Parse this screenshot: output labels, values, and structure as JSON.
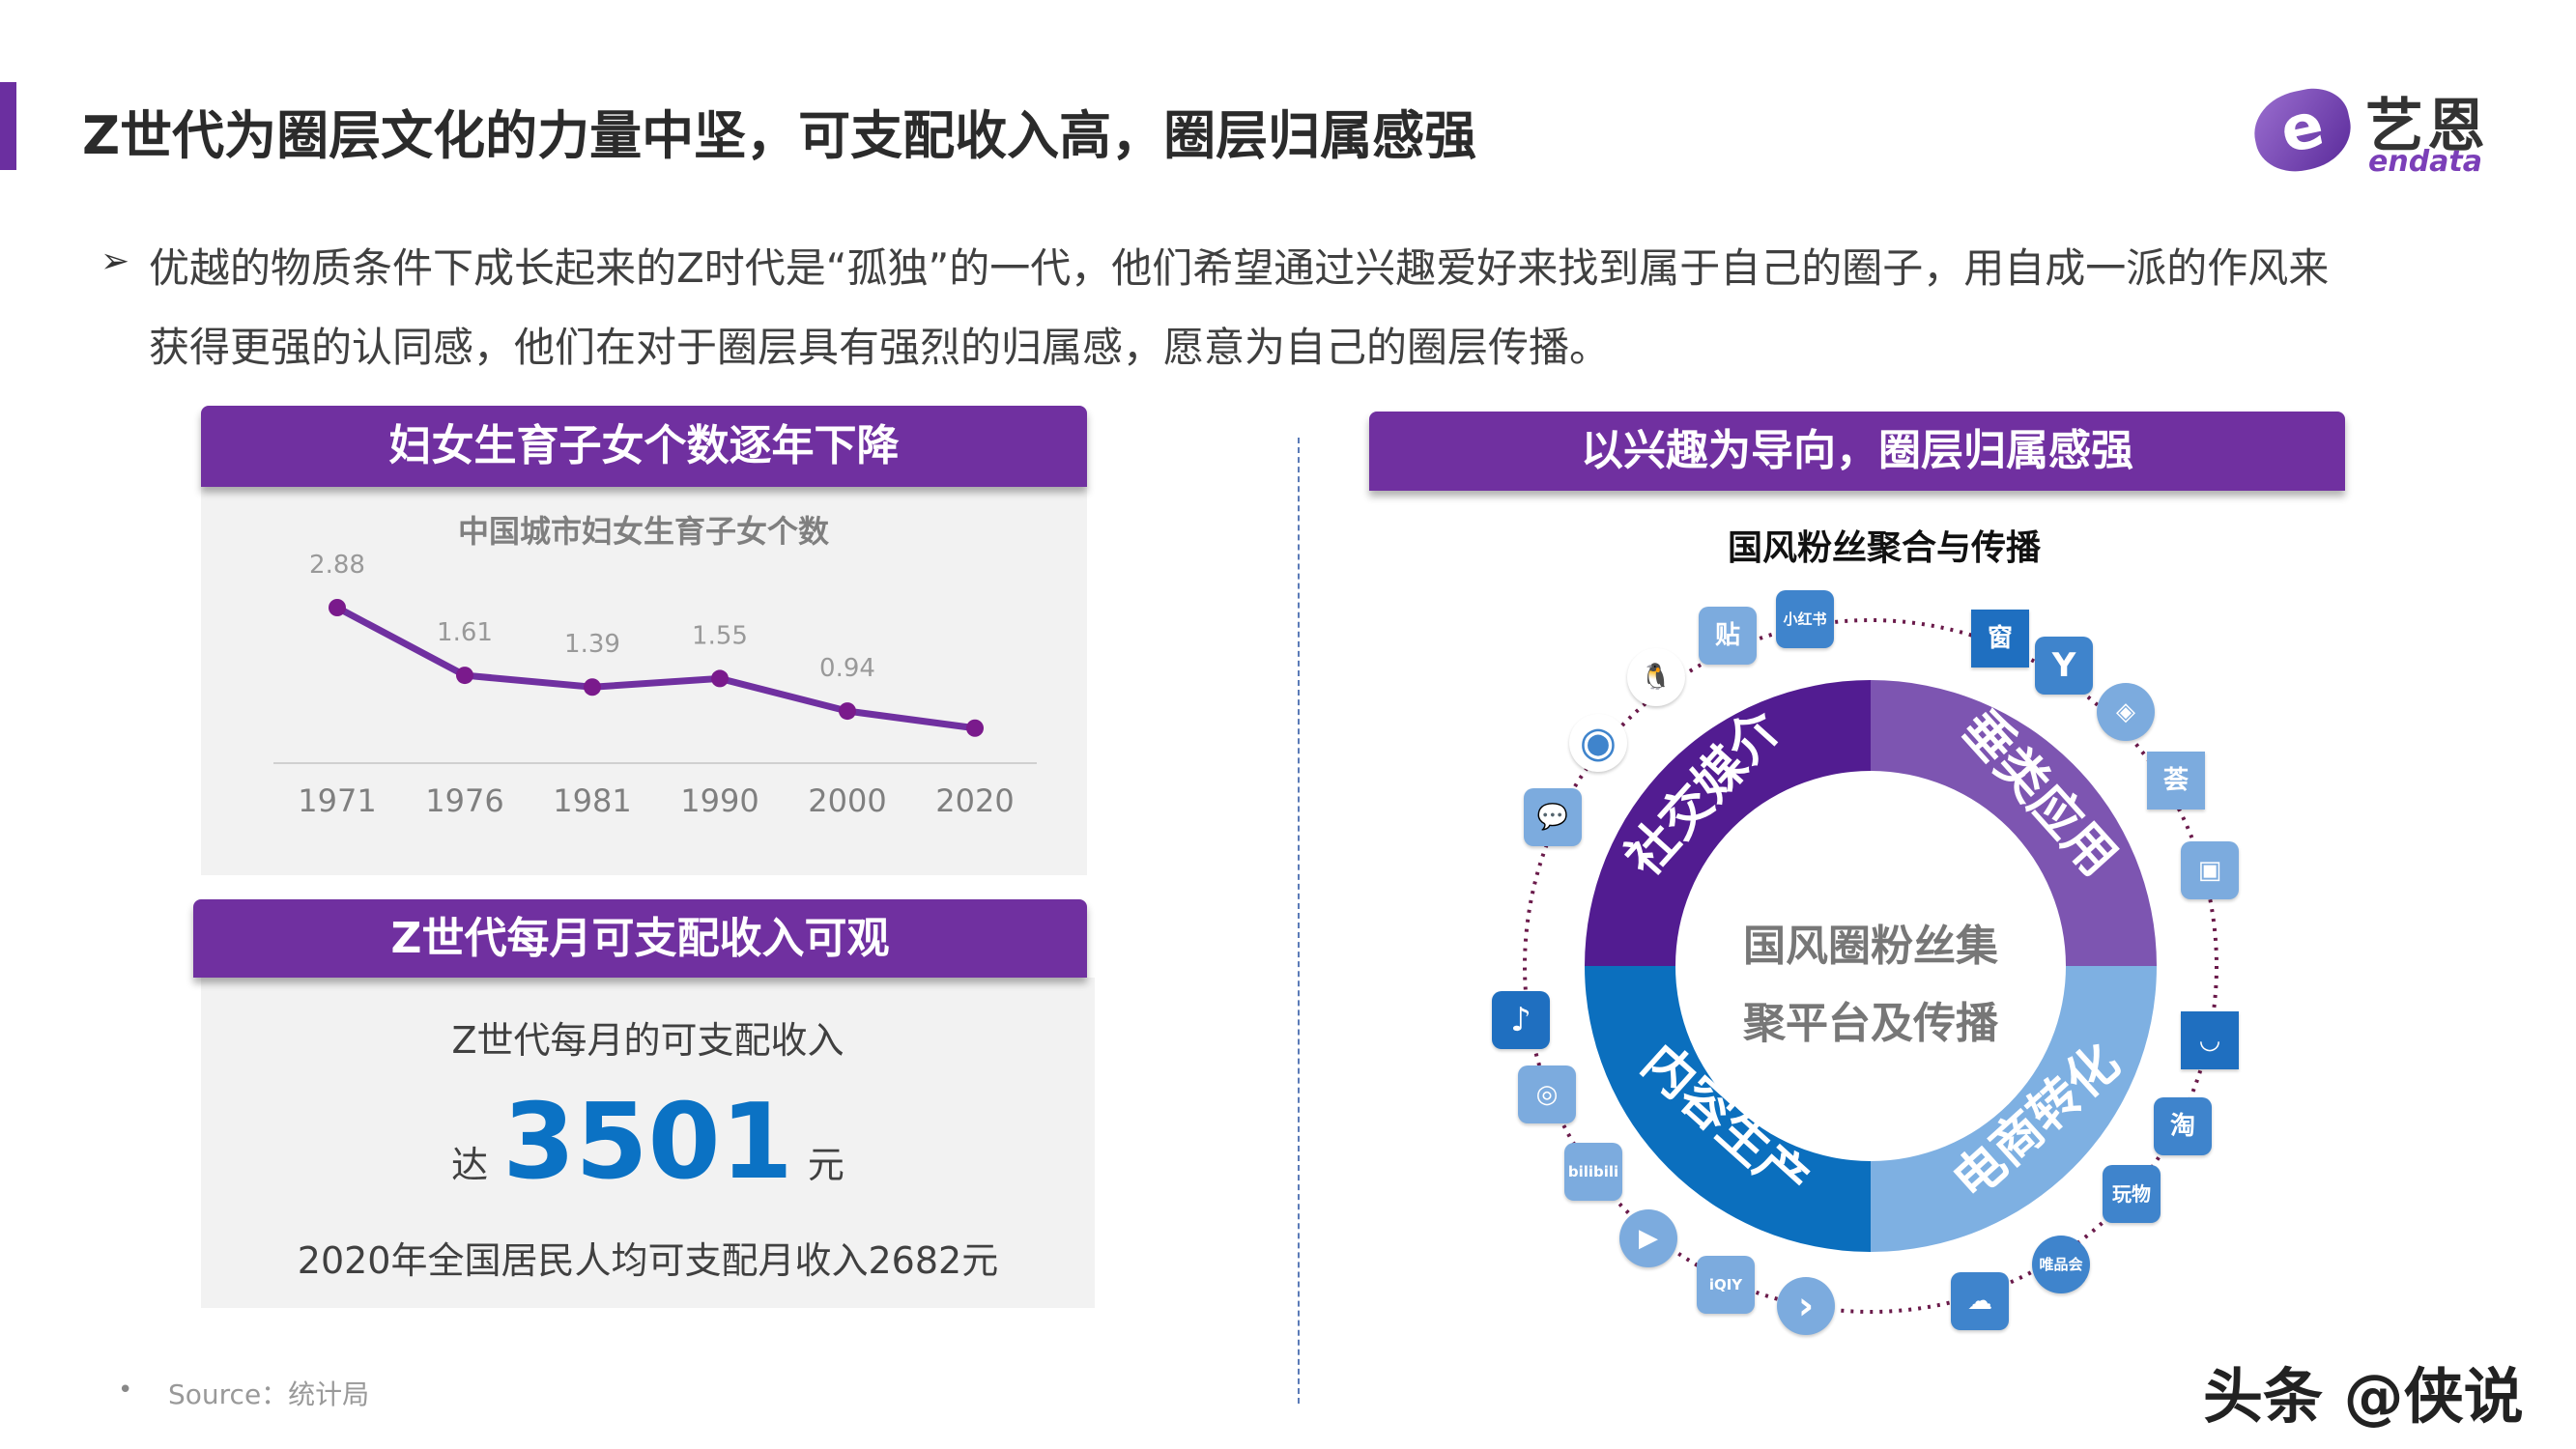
{
  "header": {
    "title": "Z世代为圈层文化的力量中坚，可支配收入高，圈层归属感强",
    "logo_cn": "艺恩",
    "logo_en": "endata",
    "logo_mark": "e"
  },
  "intro": {
    "bullet_icon": "➢",
    "line1": "优越的物质条件下成长起来的Z时代是“孤独”的一代，他们希望通过兴趣爱好来找到属于自己的圈子，用自成一派的作风来",
    "line2": "获得更强的认同感，他们在对于圈层具有强烈的归属感，愿意为自己的圈层传播。"
  },
  "left_top": {
    "header": "妇女生育子女个数逐年下降"
  },
  "chart_data": {
    "type": "line",
    "title": "中国城市妇女生育子女个数",
    "categories": [
      "1971",
      "1976",
      "1981",
      "1990",
      "2000",
      "2020"
    ],
    "values": [
      2.88,
      1.61,
      1.39,
      1.55,
      0.94,
      0.62
    ],
    "labels": [
      "2.88",
      "1.61",
      "1.39",
      "1.55",
      "0.94",
      ""
    ],
    "xlabel": "",
    "ylabel": "",
    "ylim": [
      0,
      3
    ],
    "grid": false,
    "color": "#7030a0"
  },
  "left_bottom": {
    "header": "Z世代每月可支配收入可观",
    "caption": "Z世代每月的可支配收入",
    "prefix": "达",
    "amount": "3501",
    "unit": "元",
    "note": "2020年全国居民人均可支配月收入2682元"
  },
  "source": {
    "bullet": "•",
    "text": "Source：统计局"
  },
  "right": {
    "header": "以兴趣为导向，圈层归属感强",
    "subtitle": "国风粉丝聚合与传播",
    "center_line1": "国风圈粉丝集",
    "center_line2": "聚平台及传播",
    "quadrants": [
      "社交媒介",
      "垂类应用",
      "内容生产",
      "电商转化"
    ],
    "icons": {
      "tieba": "贴",
      "xiaohongshu": "小红书",
      "qq": "🐧",
      "weibo": "◉",
      "wechat": "💬",
      "douyin": "♪",
      "kuaishou": "◎",
      "bilibili": "bilibili",
      "tencent_video": "▶",
      "iqiyi": "iQIY",
      "youku": "›",
      "meituan": "☁",
      "vip": "唯品会",
      "wanwu": "玩物",
      "taobao": "淘",
      "bag": "◡",
      "box": "▣",
      "hui": "荟",
      "cube": "◈",
      "y": "Y",
      "chuang": "窗"
    }
  },
  "watermark": "头条 @侠说",
  "colors": {
    "purple": "#7030a0",
    "q1": "#521c91",
    "q2": "#7d55b1",
    "q3": "#0b6fbe",
    "q4": "#7eb0e2",
    "amount": "#0b72c4"
  }
}
